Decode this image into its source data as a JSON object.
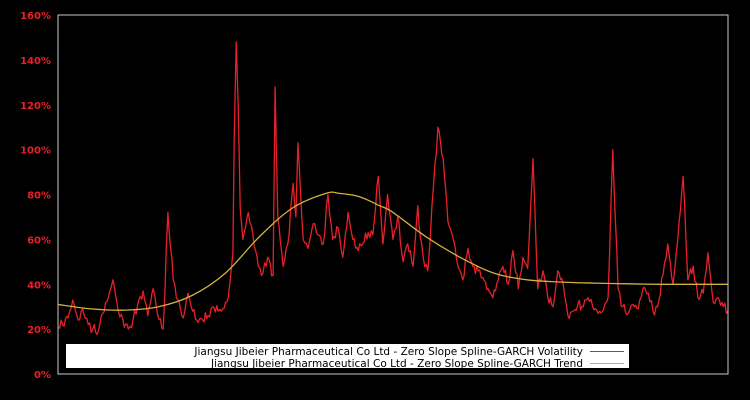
{
  "chart_data": {
    "type": "line",
    "title": "",
    "xlabel": "",
    "ylabel": "",
    "ylim": [
      0,
      160
    ],
    "y_ticks": [
      "0%",
      "20%",
      "40%",
      "60%",
      "80%",
      "100%",
      "120%",
      "140%",
      "160%"
    ],
    "y_tick_values": [
      0,
      20,
      40,
      60,
      80,
      100,
      120,
      140,
      160
    ],
    "x_ticks": [],
    "grid": false,
    "legend_position": "bottom-inside",
    "background": "#000000",
    "frame_color": "#c8c8c8",
    "tick_label_color": "#e8202a",
    "x_note": "x is normalized position across the time axis (0 = left edge, 1 = right edge); no x tick labels are shown",
    "series": [
      {
        "name": "Jiangsu Jibeier Pharmaceutical Co Ltd - Zero Slope Spline-GARCH Volatility",
        "color": "#e8202a",
        "x": [
          0.0,
          0.007,
          0.015,
          0.022,
          0.03,
          0.037,
          0.045,
          0.052,
          0.06,
          0.067,
          0.075,
          0.082,
          0.09,
          0.097,
          0.105,
          0.112,
          0.119,
          0.127,
          0.134,
          0.142,
          0.149,
          0.157,
          0.164,
          0.172,
          0.179,
          0.187,
          0.194,
          0.201,
          0.209,
          0.216,
          0.224,
          0.231,
          0.239,
          0.246,
          0.254,
          0.261,
          0.263,
          0.266,
          0.269,
          0.272,
          0.276,
          0.284,
          0.291,
          0.299,
          0.306,
          0.313,
          0.321,
          0.324,
          0.328,
          0.336,
          0.343,
          0.351,
          0.355,
          0.358,
          0.366,
          0.373,
          0.381,
          0.388,
          0.396,
          0.403,
          0.41,
          0.418,
          0.425,
          0.433,
          0.44,
          0.448,
          0.455,
          0.463,
          0.47,
          0.478,
          0.485,
          0.492,
          0.5,
          0.507,
          0.515,
          0.522,
          0.53,
          0.537,
          0.539,
          0.545,
          0.552,
          0.56,
          0.567,
          0.575,
          0.582,
          0.59,
          0.597,
          0.604,
          0.612,
          0.619,
          0.627,
          0.634,
          0.642,
          0.649,
          0.657,
          0.664,
          0.672,
          0.679,
          0.687,
          0.694,
          0.701,
          0.709,
          0.716,
          0.724,
          0.731,
          0.739,
          0.746,
          0.754,
          0.761,
          0.769,
          0.776,
          0.784,
          0.791,
          0.798,
          0.806,
          0.813,
          0.821,
          0.828,
          0.836,
          0.843,
          0.851,
          0.858,
          0.866,
          0.873,
          0.881,
          0.888,
          0.895,
          0.903,
          0.91,
          0.918,
          0.925,
          0.933,
          0.94,
          0.948,
          0.955,
          0.963,
          0.97,
          0.978,
          0.985,
          0.993,
          1.0
        ],
        "values": [
          21,
          22,
          25,
          33,
          24,
          29,
          22,
          20,
          19,
          27,
          34,
          42,
          28,
          24,
          20,
          24,
          31,
          37,
          26,
          38,
          26,
          20,
          72,
          42,
          33,
          25,
          36,
          28,
          23,
          24,
          26,
          30,
          28,
          29,
          34,
          54,
          105,
          148,
          120,
          74,
          60,
          72,
          62,
          48,
          45,
          52,
          44,
          128,
          70,
          48,
          58,
          85,
          70,
          103,
          60,
          56,
          67,
          62,
          58,
          80,
          60,
          65,
          52,
          72,
          60,
          55,
          58,
          63,
          62,
          88,
          58,
          80,
          60,
          70,
          50,
          58,
          48,
          75,
          66,
          52,
          46,
          82,
          110,
          96,
          68,
          60,
          48,
          42,
          56,
          48,
          46,
          43,
          38,
          34,
          42,
          48,
          40,
          55,
          38,
          52,
          47,
          96,
          38,
          46,
          34,
          30,
          46,
          40,
          26,
          28,
          31,
          30,
          34,
          30,
          27,
          28,
          34,
          100,
          38,
          30,
          27,
          31,
          29,
          38,
          36,
          28,
          30,
          44,
          58,
          40,
          60,
          88,
          42,
          48,
          34,
          36,
          54,
          32,
          34,
          30,
          28
        ],
        "notable_peaks": [
          {
            "x": 0.262,
            "value": 149
          },
          {
            "x": 0.326,
            "value": 128
          },
          {
            "x": 0.375,
            "value": 103
          },
          {
            "x": 0.54,
            "value": 115
          },
          {
            "x": 0.687,
            "value": 96
          },
          {
            "x": 0.806,
            "value": 101
          },
          {
            "x": 0.888,
            "value": 88
          },
          {
            "x": 0.131,
            "value": 72
          }
        ]
      },
      {
        "name": "Jiangsu Jibeier Pharmaceutical Co Ltd - Zero Slope Spline-GARCH Trend",
        "color": "#d4b13a",
        "x": [
          0.0,
          0.05,
          0.1,
          0.15,
          0.2,
          0.25,
          0.3,
          0.35,
          0.4,
          0.42,
          0.45,
          0.48,
          0.5,
          0.55,
          0.6,
          0.65,
          0.7,
          0.75,
          0.8,
          0.85,
          0.9,
          0.95,
          1.0
        ],
        "values": [
          31,
          29,
          28.5,
          30,
          35,
          45,
          61,
          74,
          80.5,
          80.5,
          79,
          75,
          72,
          61,
          52,
          45,
          42,
          41,
          40.5,
          40.2,
          40,
          40,
          40
        ]
      }
    ]
  },
  "legend": {
    "items": [
      {
        "label": "Jiangsu Jibeier Pharmaceutical Co Ltd - Zero Slope Spline-GARCH Volatility",
        "color": "#e8202a"
      },
      {
        "label": "Jiangsu Jibeier Pharmaceutical Co Ltd - Zero Slope Spline-GARCH Trend",
        "color": "#d4b13a"
      }
    ]
  }
}
